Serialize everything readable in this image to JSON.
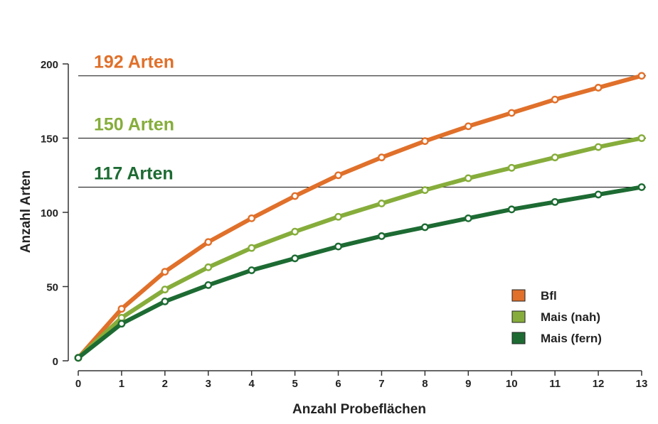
{
  "chart_data": {
    "type": "line",
    "xlabel": "Anzahl Probeflächen",
    "ylabel": "Anzahl Arten",
    "x": [
      0,
      1,
      2,
      3,
      4,
      5,
      6,
      7,
      8,
      9,
      10,
      11,
      12,
      13
    ],
    "xlim": [
      0,
      13
    ],
    "ylim": [
      0,
      200
    ],
    "xticks": [
      "0",
      "1",
      "2",
      "3",
      "4",
      "5",
      "6",
      "7",
      "8",
      "9",
      "10",
      "11",
      "12",
      "13"
    ],
    "yticks": [
      "0",
      "50",
      "100",
      "150",
      "200"
    ],
    "grid": false,
    "legend_position": "bottom-right",
    "series": [
      {
        "name": "Bfl",
        "color": "#e0702a",
        "values": [
          2,
          35,
          60,
          80,
          96,
          111,
          125,
          137,
          148,
          158,
          167,
          176,
          184,
          192
        ]
      },
      {
        "name": "Mais (nah)",
        "color": "#86ad3b",
        "values": [
          2,
          29,
          48,
          63,
          76,
          87,
          97,
          106,
          115,
          123,
          130,
          137,
          144,
          150
        ]
      },
      {
        "name": "Mais (fern)",
        "color": "#1d6b33",
        "values": [
          2,
          25,
          40,
          51,
          61,
          69,
          77,
          84,
          90,
          96,
          102,
          107,
          112,
          117
        ]
      }
    ],
    "reference_lines": [
      {
        "y": 192,
        "label": "192 Arten",
        "color": "#e0702a"
      },
      {
        "y": 150,
        "label": "150 Arten",
        "color": "#86ad3b"
      },
      {
        "y": 117,
        "label": "117 Arten",
        "color": "#1d6b33"
      }
    ]
  }
}
